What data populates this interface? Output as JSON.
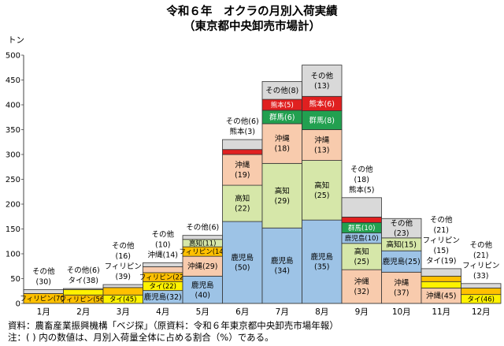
{
  "title": "令和６年　オクラの月別入荷実績",
  "subtitle": "（東京都中央卸売市場計）",
  "source": "資料：農畜産業振興機構「ベジ探」（原資料：令和６年東京都中央卸売市場年報）",
  "note": "注：( ) 内の数値は、月別入荷量全体に占める割合（%）である。",
  "colors": {
    "鹿児島": "#9DC3E6",
    "高知": "#D6E7A9",
    "沖縄": "#F8CBAD",
    "群馬": "#22A050",
    "熊本": "#E02020",
    "フィリピン": "#FFC000",
    "タイ": "#FFF200",
    "その他": "#D9D9D9"
  },
  "chart_data": {
    "type": "bar",
    "stacked": true,
    "ylabel": "トン",
    "ylim": [
      0,
      500
    ],
    "yticks": [
      0,
      50,
      100,
      150,
      200,
      250,
      300,
      350,
      400,
      450,
      500
    ],
    "grid": false,
    "categories": [
      "1月",
      "2月",
      "3月",
      "4月",
      "5月",
      "6月",
      "7月",
      "8月",
      "9月",
      "10月",
      "11月",
      "12月"
    ],
    "months": [
      {
        "total": 28,
        "segments": [
          {
            "name": "フィリピン",
            "value": 20,
            "share": 70,
            "label": "フィリピン(70)"
          },
          {
            "name": "その他",
            "value": 8,
            "share": 30,
            "label": ""
          }
        ],
        "above": [
          "その他",
          "(30)"
        ]
      },
      {
        "total": 30,
        "segments": [
          {
            "name": "フィリピン",
            "value": 17,
            "share": 56,
            "label": "フィリピン(56)"
          },
          {
            "name": "タイ",
            "value": 11,
            "share": 38,
            "label": ""
          },
          {
            "name": "その他",
            "value": 2,
            "share": 6,
            "label": ""
          }
        ],
        "above": [
          "その他(6)",
          "タイ(38)"
        ]
      },
      {
        "total": 38,
        "segments": [
          {
            "name": "タイ",
            "value": 17,
            "share": 45,
            "label": "タイ(45)"
          },
          {
            "name": "フィリピン",
            "value": 15,
            "share": 39,
            "label": ""
          },
          {
            "name": "その他",
            "value": 6,
            "share": 16,
            "label": ""
          }
        ],
        "above": [
          "その他",
          "(16)",
          "フィリピン",
          "(39)"
        ]
      },
      {
        "total": 82,
        "segments": [
          {
            "name": "鹿児島",
            "value": 26,
            "share": 32,
            "label": "鹿児島(32)"
          },
          {
            "name": "タイ",
            "value": 18,
            "share": 22,
            "label": "タイ(22)"
          },
          {
            "name": "フィリピン",
            "value": 18,
            "share": 22,
            "label": "フィリピン(22)"
          },
          {
            "name": "沖縄",
            "value": 12,
            "share": 14,
            "label": ""
          },
          {
            "name": "その他",
            "value": 8,
            "share": 10,
            "label": ""
          }
        ],
        "above": [
          "その他",
          "(10)",
          "沖縄(14)"
        ]
      },
      {
        "total": 137,
        "segments": [
          {
            "name": "鹿児島",
            "value": 55,
            "share": 40,
            "label": "鹿児島,(40)"
          },
          {
            "name": "沖縄",
            "value": 40,
            "share": 29,
            "label": "沖縄(29)"
          },
          {
            "name": "フィリピン",
            "value": 19,
            "share": 14,
            "label": "フィリピン(14)"
          },
          {
            "name": "高知",
            "value": 15,
            "share": 11,
            "label": "高知(11)"
          },
          {
            "name": "その他",
            "value": 8,
            "share": 6,
            "label": ""
          }
        ],
        "above": [
          "その他(6)"
        ]
      },
      {
        "total": 330,
        "segments": [
          {
            "name": "鹿児島",
            "value": 165,
            "share": 50,
            "label": "鹿児島,(50)"
          },
          {
            "name": "高知",
            "value": 73,
            "share": 22,
            "label": "高知,(22)"
          },
          {
            "name": "沖縄",
            "value": 62,
            "share": 19,
            "label": "沖縄,(19)"
          },
          {
            "name": "熊本",
            "value": 10,
            "share": 3,
            "label": ""
          },
          {
            "name": "その他",
            "value": 20,
            "share": 6,
            "label": ""
          }
        ],
        "above": [
          "その他(6)",
          "熊本(3)"
        ]
      },
      {
        "total": 447,
        "segments": [
          {
            "name": "鹿児島",
            "value": 152,
            "share": 34,
            "label": "鹿児島,(34)"
          },
          {
            "name": "高知",
            "value": 130,
            "share": 29,
            "label": "高知,(29)"
          },
          {
            "name": "沖縄",
            "value": 80,
            "share": 18,
            "label": "沖縄,(18)"
          },
          {
            "name": "群馬",
            "value": 27,
            "share": 6,
            "label": "群馬(6)"
          },
          {
            "name": "熊本",
            "value": 22,
            "share": 5,
            "label": "熊本(5)"
          },
          {
            "name": "その他",
            "value": 36,
            "share": 8,
            "label": "その他(8)"
          }
        ],
        "above": []
      },
      {
        "total": 480,
        "segments": [
          {
            "name": "鹿児島",
            "value": 168,
            "share": 35,
            "label": "鹿児島,(35)"
          },
          {
            "name": "高知",
            "value": 120,
            "share": 25,
            "label": "高知,(25)"
          },
          {
            "name": "沖縄",
            "value": 62,
            "share": 13,
            "label": "沖縄,(13)"
          },
          {
            "name": "群馬",
            "value": 38,
            "share": 8,
            "label": "群馬(8)"
          },
          {
            "name": "熊本",
            "value": 29,
            "share": 6,
            "label": "熊本(6)"
          },
          {
            "name": "その他",
            "value": 63,
            "share": 13,
            "label": "その他,(13)"
          }
        ],
        "above": []
      },
      {
        "total": 213,
        "segments": [
          {
            "name": "沖縄",
            "value": 68,
            "share": 32,
            "label": "沖縄,(32)"
          },
          {
            "name": "高知",
            "value": 53,
            "share": 25,
            "label": "高知,(25)"
          },
          {
            "name": "鹿児島",
            "value": 21,
            "share": 10,
            "label": "鹿児島(10)"
          },
          {
            "name": "群馬",
            "value": 21,
            "share": 10,
            "label": "群馬(10)"
          },
          {
            "name": "熊本",
            "value": 11,
            "share": 5,
            "label": ""
          },
          {
            "name": "その他",
            "value": 39,
            "share": 18,
            "label": ""
          }
        ],
        "above": [
          "その他",
          "(18)",
          "熊本(5)"
        ]
      },
      {
        "total": 171,
        "segments": [
          {
            "name": "沖縄",
            "value": 63,
            "share": 37,
            "label": "沖縄,(37)"
          },
          {
            "name": "鹿児島",
            "value": 43,
            "share": 25,
            "label": "鹿児島(25)"
          },
          {
            "name": "高知",
            "value": 26,
            "share": 15,
            "label": "高知(15)"
          },
          {
            "name": "その他",
            "value": 39,
            "share": 23,
            "label": "その他,(23)"
          }
        ],
        "above": []
      },
      {
        "total": 70,
        "segments": [
          {
            "name": "沖縄",
            "value": 31,
            "share": 45,
            "label": "沖縄(45)"
          },
          {
            "name": "タイ",
            "value": 13,
            "share": 19,
            "label": ""
          },
          {
            "name": "フィリピン",
            "value": 11,
            "share": 15,
            "label": ""
          },
          {
            "name": "その他",
            "value": 15,
            "share": 21,
            "label": ""
          }
        ],
        "above": [
          "その他",
          "(21)",
          "フィリピン",
          "(15)",
          "タイ(19)"
        ]
      },
      {
        "total": 40,
        "segments": [
          {
            "name": "タイ",
            "value": 18,
            "share": 46,
            "label": "タイ(46)"
          },
          {
            "name": "フィリピン",
            "value": 13,
            "share": 33,
            "label": ""
          },
          {
            "name": "その他",
            "value": 9,
            "share": 21,
            "label": ""
          }
        ],
        "above": [
          "その他",
          "(21)",
          "フィリピン",
          "(33)"
        ]
      }
    ]
  }
}
